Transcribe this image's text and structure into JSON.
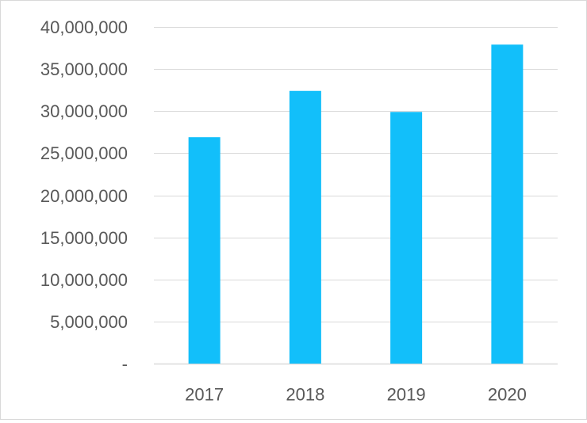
{
  "chart_data": {
    "type": "bar",
    "title": "",
    "xlabel": "",
    "ylabel": "",
    "categories": [
      "2017",
      "2018",
      "2019",
      "2020"
    ],
    "values": [
      26900000,
      32400000,
      29900000,
      37900000
    ],
    "ylim": [
      0,
      40000000
    ],
    "y_ticks": [
      0,
      5000000,
      10000000,
      15000000,
      20000000,
      25000000,
      30000000,
      35000000,
      40000000
    ],
    "y_tick_labels": [
      "-",
      "5,000,000",
      "10,000,000",
      "15,000,000",
      "20,000,000",
      "25,000,000",
      "30,000,000",
      "35,000,000",
      "40,000,000"
    ],
    "grid": true,
    "legend": "none",
    "bar_color": "#12BFFA",
    "grid_color": "#D9D9D9",
    "text_color": "#595959"
  }
}
